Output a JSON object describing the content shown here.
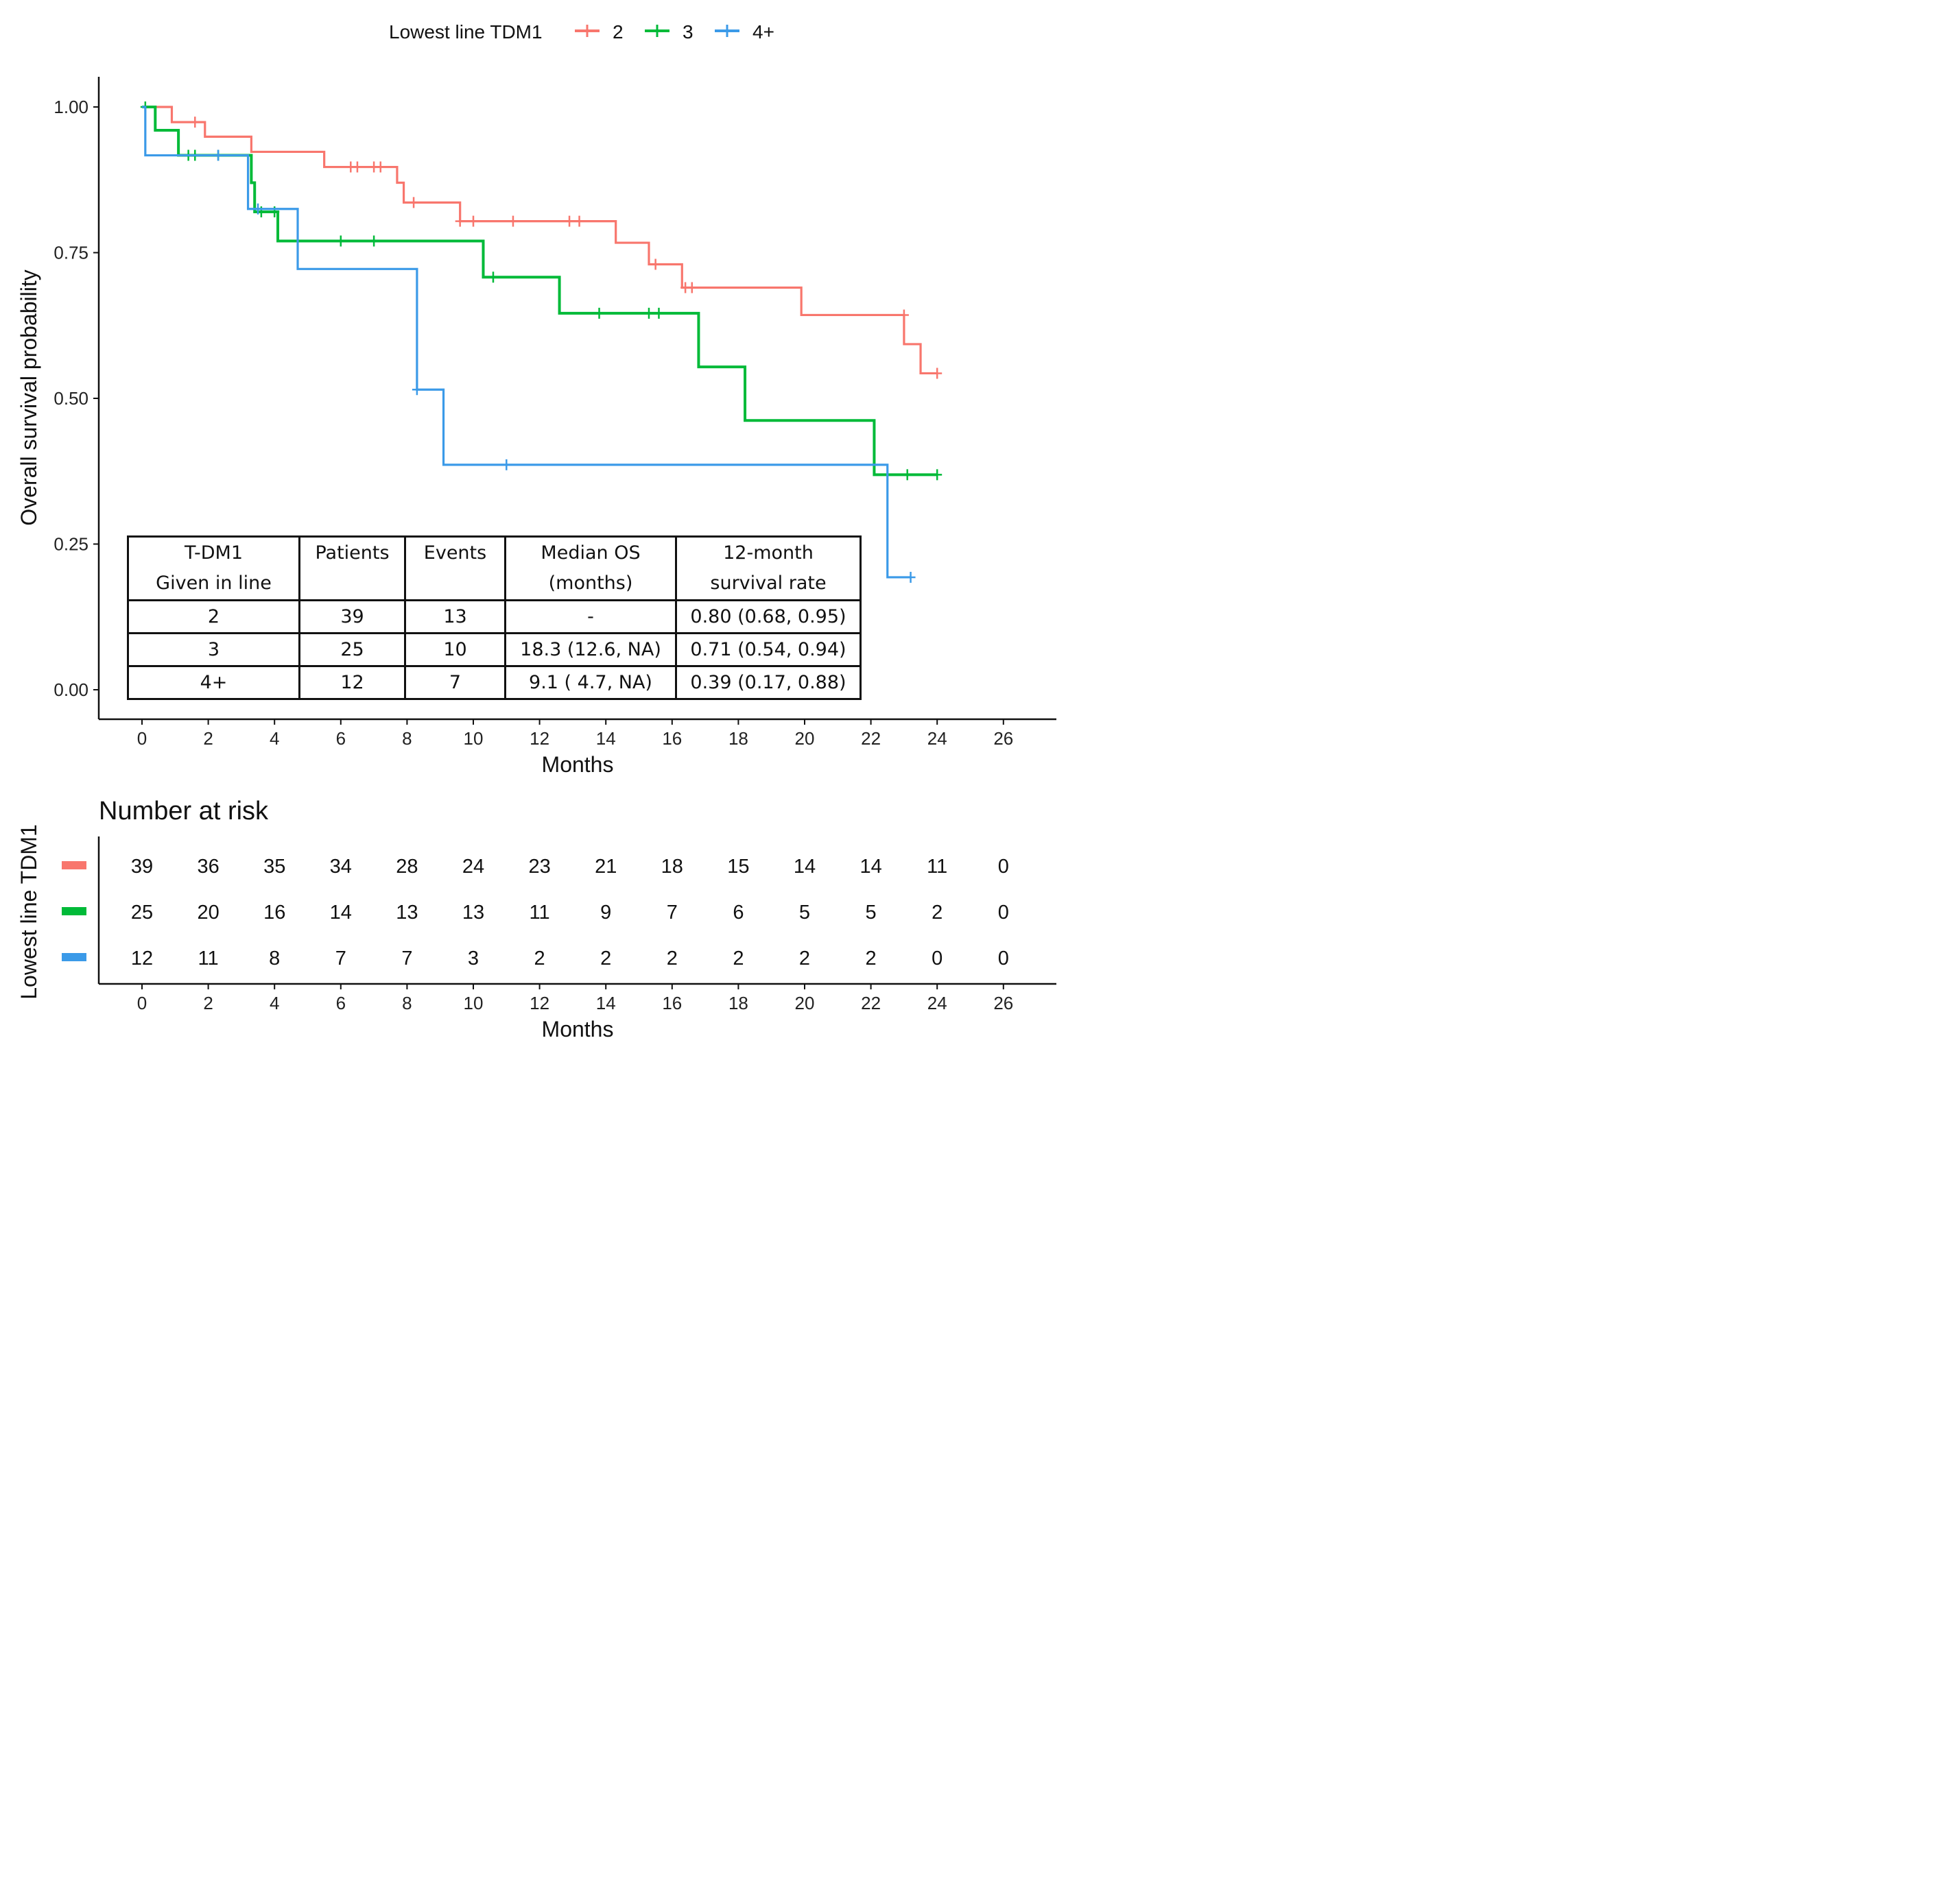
{
  "legend": {
    "title": "Lowest line TDM1",
    "entries": [
      {
        "label": "2",
        "color": "#F8766D"
      },
      {
        "label": "3",
        "color": "#00BA38"
      },
      {
        "label": "4+",
        "color": "#3B9AE8"
      }
    ]
  },
  "chart_data": {
    "type": "line",
    "step": true,
    "title": "",
    "xlabel": "Months",
    "ylabel": "Overall survival probability",
    "xlim": [
      -1.3,
      27.5
    ],
    "ylim": [
      -0.1,
      1.05
    ],
    "xticks": [
      "0",
      "2",
      "4",
      "6",
      "8",
      "10",
      "12",
      "14",
      "16",
      "18",
      "20",
      "22",
      "24",
      "26"
    ],
    "yticks": [
      "0.00",
      "0.25",
      "0.50",
      "0.75",
      "1.00"
    ],
    "series": [
      {
        "name": "2",
        "color": "#F8766D",
        "x": [
          0,
          0.9,
          1.9,
          3.3,
          5.5,
          7.7,
          7.9,
          9.6,
          14.3,
          15.3,
          16.3,
          19.9,
          23.0,
          23.5,
          24.0
        ],
        "y": [
          1.0,
          0.974,
          0.949,
          0.923,
          0.897,
          0.87,
          0.836,
          0.804,
          0.767,
          0.73,
          0.69,
          0.643,
          0.593,
          0.543,
          0.543
        ],
        "censor_x": [
          1.6,
          6.3,
          6.5,
          7.0,
          7.2,
          8.2,
          9.6,
          10.0,
          11.2,
          12.9,
          13.2,
          15.5,
          16.4,
          16.6,
          23.0,
          24.0
        ],
        "censor_y": [
          0.974,
          0.897,
          0.897,
          0.897,
          0.897,
          0.836,
          0.804,
          0.804,
          0.804,
          0.804,
          0.804,
          0.73,
          0.69,
          0.69,
          0.643,
          0.543
        ]
      },
      {
        "name": "3",
        "color": "#00BA38",
        "x": [
          0,
          0.4,
          1.1,
          3.3,
          3.4,
          4.1,
          10.3,
          12.6,
          16.8,
          18.2,
          22.1,
          24.0
        ],
        "y": [
          1.0,
          0.96,
          0.917,
          0.87,
          0.82,
          0.77,
          0.708,
          0.646,
          0.554,
          0.462,
          0.369,
          0.369
        ],
        "censor_x": [
          0.1,
          1.4,
          1.6,
          2.3,
          3.6,
          4.0,
          6.0,
          7.0,
          10.6,
          13.8,
          15.3,
          15.6,
          22.5,
          23.1,
          24.0
        ],
        "censor_y": [
          1.0,
          0.917,
          0.917,
          0.917,
          0.82,
          0.82,
          0.77,
          0.77,
          0.708,
          0.646,
          0.646,
          0.646,
          0.369,
          0.369,
          0.369
        ],
        "thick": true
      },
      {
        "name": "4+",
        "color": "#3B9AE8",
        "x": [
          0,
          0.1,
          3.2,
          4.7,
          8.3,
          9.1,
          22.5,
          23.2
        ],
        "y": [
          1.0,
          0.917,
          0.825,
          0.722,
          0.515,
          0.386,
          0.193,
          0.193
        ],
        "censor_x": [
          2.3,
          3.5,
          8.3,
          11.0,
          23.2
        ],
        "censor_y": [
          0.917,
          0.825,
          0.515,
          0.386,
          0.193
        ]
      }
    ]
  },
  "summary_table": {
    "headers": [
      [
        "T-DM1",
        "Given in line"
      ],
      [
        "Patients"
      ],
      [
        "Events"
      ],
      [
        "Median OS",
        "(months)"
      ],
      [
        "12-month",
        "survival rate"
      ]
    ],
    "rows": [
      [
        "2",
        "39",
        "13",
        "-",
        "0.80 (0.68, 0.95)"
      ],
      [
        "3",
        "25",
        "10",
        "18.3 (12.6, NA)",
        "0.71 (0.54, 0.94)"
      ],
      [
        "4+",
        "12",
        "7",
        "9.1 ( 4.7, NA)",
        "0.39 (0.17, 0.88)"
      ]
    ]
  },
  "risk_table": {
    "title": "Number at risk",
    "ylabel": "Lowest line TDM1",
    "xlabel": "Months",
    "times": [
      "0",
      "2",
      "4",
      "6",
      "8",
      "10",
      "12",
      "14",
      "16",
      "18",
      "20",
      "22",
      "24",
      "26"
    ],
    "rows": [
      {
        "color": "#F8766D",
        "values": [
          "39",
          "36",
          "35",
          "34",
          "28",
          "24",
          "23",
          "21",
          "18",
          "15",
          "14",
          "14",
          "11",
          "0"
        ]
      },
      {
        "color": "#00BA38",
        "values": [
          "25",
          "20",
          "16",
          "14",
          "13",
          "13",
          "11",
          "9",
          "7",
          "6",
          "5",
          "5",
          "2",
          "0"
        ]
      },
      {
        "color": "#3B9AE8",
        "values": [
          "12",
          "11",
          "8",
          "7",
          "7",
          "3",
          "2",
          "2",
          "2",
          "2",
          "2",
          "2",
          "0",
          "0"
        ]
      }
    ]
  }
}
